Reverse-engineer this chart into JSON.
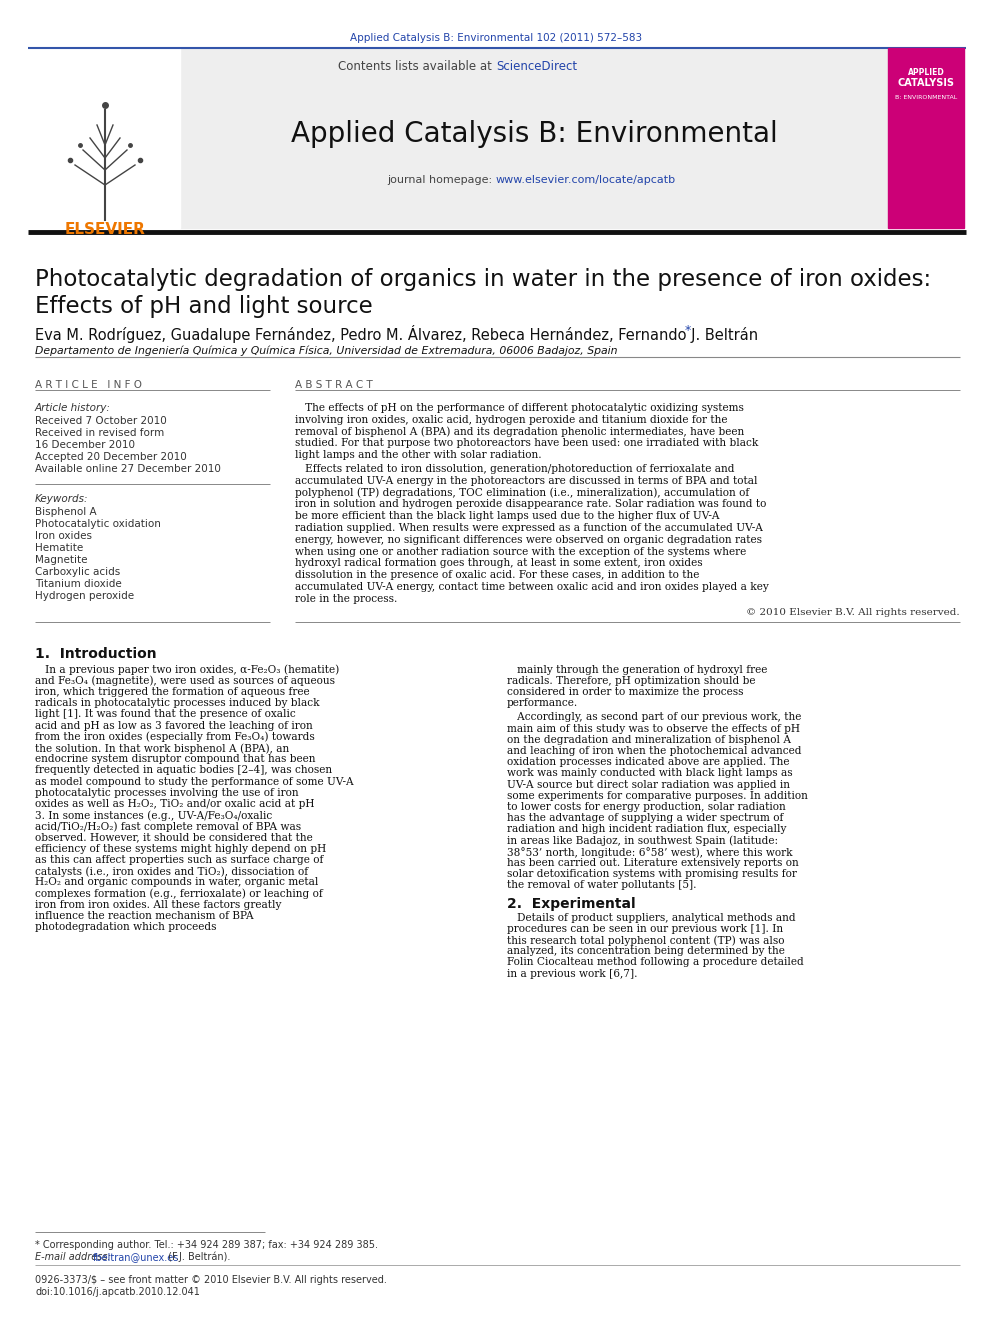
{
  "journal_ref": "Applied Catalysis B: Environmental 102 (2011) 572–583",
  "journal_ref_color": "#2244aa",
  "contents_text": "Contents lists available at ",
  "sciencedirect_text": "ScienceDirect",
  "sciencedirect_color": "#2244aa",
  "journal_name": "Applied Catalysis B: Environmental",
  "journal_homepage_label": "journal homepage: ",
  "journal_url": "www.elsevier.com/locate/apcatb",
  "journal_url_color": "#2244aa",
  "elsevier_text": "ELSEVIER",
  "elsevier_color": "#ee7700",
  "title_line1": "Photocatalytic degradation of organics in water in the presence of iron oxides:",
  "title_line2": "Effects of pH and light source",
  "authors": "Eva M. Rodríguez, Guadalupe Fernández, Pedro M. Álvarez, Rebeca Hernández, Fernando J. Beltrán",
  "authors_star": "*",
  "affiliation": "Departamento de Ingeniería Química y Química Física, Universidad de Extremadura, 06006 Badajoz, Spain",
  "article_info_header": "A R T I C L E   I N F O",
  "abstract_header": "A B S T R A C T",
  "article_history_label": "Article history:",
  "history_lines": [
    "Received 7 October 2010",
    "Received in revised form",
    "16 December 2010",
    "Accepted 20 December 2010",
    "Available online 27 December 2010"
  ],
  "keywords_label": "Keywords:",
  "keywords": [
    "Bisphenol A",
    "Photocatalytic oxidation",
    "Iron oxides",
    "Hematite",
    "Magnetite",
    "Carboxylic acids",
    "Titanium dioxide",
    "Hydrogen peroxide"
  ],
  "abstract_p1": "The effects of pH on the performance of different photocatalytic oxidizing systems involving iron oxides, oxalic acid, hydrogen peroxide and titanium dioxide for the removal of bisphenol A (BPA) and its degradation phenolic intermediates, have been studied. For that purpose two photoreactors have been used: one irradiated with black light lamps and the other with solar radiation.",
  "abstract_p2": "Effects related to iron dissolution, generation/photoreduction of ferrioxalate and accumulated UV-A energy in the photoreactors are discussed in terms of BPA and total polyphenol (TP) degradations, TOC elimination (i.e., mineralization), accumulation of iron in solution and hydrogen peroxide disappearance rate. Solar radiation was found to be more efficient than the black light lamps used due to the higher flux of UV-A radiation supplied. When results were expressed as a function of the accumulated UV-A energy, however, no significant differences were observed on organic degradation rates when using one or another radiation source with the exception of the systems where hydroxyl radical formation goes through, at least in some extent, iron oxides dissolution in the presence of oxalic acid. For these cases, in addition to the accumulated UV-A energy, contact time between oxalic acid and iron oxides played a key role in the process.",
  "copyright": "© 2010 Elsevier B.V. All rights reserved.",
  "section1_title": "1.  Introduction",
  "intro_left": "In a previous paper two iron oxides, α-Fe₂O₃ (hematite) and Fe₃O₄ (magnetite), were used as sources of aqueous iron, which triggered the formation of aqueous free radicals in photocatalytic processes induced by black light [1]. It was found that the presence of oxalic acid and pH as low as 3 favored the leaching of iron from the iron oxides (especially from Fe₃O₄) towards the solution. In that work bisphenol A (BPA), an endocrine system disruptor compound that has been frequently detected in aquatic bodies [2–4], was chosen as model compound to study the performance of some UV-A photocatalytic processes involving the use of iron oxides as well as H₂O₂, TiO₂ and/or oxalic acid at pH 3. In some instances (e.g., UV-A/Fe₃O₄/oxalic acid/TiO₂/H₂O₂) fast complete removal of BPA was observed. However, it should be considered that the efficiency of these systems might highly depend on pH as this can affect properties such as surface charge of catalysts (i.e., iron oxides and TiO₂), dissociation of H₂O₂ and organic compounds in water, organic metal complexes formation (e.g., ferrioxalate) or leaching of iron from iron oxides. All these factors greatly influence the reaction mechanism of BPA photodegradation which proceeds",
  "intro_right_p1": "mainly through the generation of hydroxyl free radicals. Therefore, pH optimization should be considered in order to maximize the process performance.",
  "intro_right_p2": "Accordingly, as second part of our previous work, the main aim of this study was to observe the effects of pH on the degradation and mineralization of bisphenol A and leaching of iron when the photochemical advanced oxidation processes indicated above are applied. The work was mainly conducted with black light lamps as UV-A source but direct solar radiation was applied in some experiments for comparative purposes. In addition to lower costs for energy production, solar radiation has the advantage of supplying a wider spectrum of radiation and high incident radiation flux, especially in areas like Badajoz, in southwest Spain (latitude: 38°53’ north, longitude: 6°58’ west), where this work has been carried out. Literature extensively reports on solar detoxification systems with promising results for the removal of water pollutants [5].",
  "section2_title": "2.  Experimental",
  "section2_p": "Details of product suppliers, analytical methods and procedures can be seen in our previous work [1]. In this research total polyphenol content (TP) was also analyzed, its concentration being determined by the Folin Ciocalteau method following a procedure detailed in a previous work [6,7].",
  "footnote1": "* Corresponding author. Tel.: +34 924 289 387; fax: +34 924 289 385.",
  "footnote2_label": "E-mail address: ",
  "footnote2_email": "fbeltran@unex.es",
  "footnote2_rest": " (F.J. Beltrán).",
  "issn": "0926-3373/$ – see front matter © 2010 Elsevier B.V. All rights reserved.",
  "doi": "doi:10.1016/j.apcatb.2010.12.041",
  "bg": "#ffffff",
  "text": "#1a1a1a",
  "link": "#2244aa",
  "gray_text": "#555555",
  "rule_color": "#888888",
  "header_bg": "#eeeeee",
  "cover_bg": "#cc0077"
}
